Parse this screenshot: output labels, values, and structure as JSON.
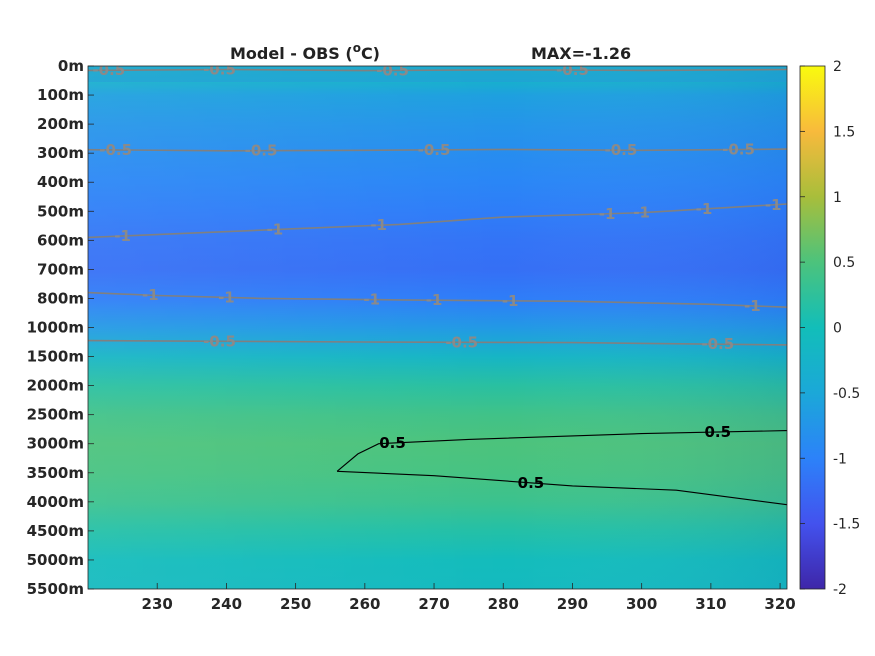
{
  "chart_data": {
    "type": "heatmap",
    "title": "Model - OBS (",
    "title_unit": "o",
    "title_suffix": "C)",
    "max_label": "MAX=-1.26",
    "x_ticks": [
      230,
      240,
      250,
      260,
      270,
      280,
      290,
      300,
      310,
      320
    ],
    "xlim": [
      220,
      321
    ],
    "y_tick_labels": [
      "0m",
      "100m",
      "200m",
      "300m",
      "400m",
      "500m",
      "600m",
      "700m",
      "800m",
      "1000m",
      "1500m",
      "2000m",
      "2500m",
      "3000m",
      "3500m",
      "4000m",
      "4500m",
      "5000m",
      "5500m"
    ],
    "colorbar": {
      "clim": [
        -2,
        2
      ],
      "ticks": [
        "2",
        "1.5",
        "1",
        "0.5",
        "0",
        "-0.5",
        "-1",
        "-1.5",
        "-2"
      ],
      "colormap": "parula"
    },
    "depth_profile": [
      {
        "level": 0,
        "value": -0.15
      },
      {
        "level": 0.5,
        "value": -0.3
      },
      {
        "level": 1,
        "value": -0.6
      },
      {
        "level": 2,
        "value": -0.75
      },
      {
        "level": 3,
        "value": -0.85
      },
      {
        "level": 4,
        "value": -0.95
      },
      {
        "level": 5,
        "value": -1.05
      },
      {
        "level": 6,
        "value": -1.15
      },
      {
        "level": 7,
        "value": -1.2
      },
      {
        "level": 8,
        "value": -1.05
      },
      {
        "level": 9,
        "value": -0.7
      },
      {
        "level": 10,
        "value": -0.2
      },
      {
        "level": 11,
        "value": 0.2
      },
      {
        "level": 12,
        "value": 0.4
      },
      {
        "level": 13,
        "value": 0.5
      },
      {
        "level": 14,
        "value": 0.45
      },
      {
        "level": 15,
        "value": 0.35
      },
      {
        "level": 16,
        "value": 0.15
      },
      {
        "level": 17,
        "value": -0.05
      },
      {
        "level": 18,
        "value": -0.1
      }
    ],
    "contours": [
      {
        "value": -0.5,
        "color": "#808080",
        "labels": [
          "-0.5",
          "-0.5",
          "-0.5",
          "-0.5"
        ],
        "points": [
          [
            220,
            0.15
          ],
          [
            240,
            0.12
          ],
          [
            260,
            0.16
          ],
          [
            280,
            0.13
          ],
          [
            300,
            0.15
          ],
          [
            321,
            0.12
          ]
        ],
        "label_x": [
          223,
          239,
          264,
          290
        ]
      },
      {
        "value": -0.5,
        "color": "#808080",
        "labels": [
          "-0.5",
          "-0.5",
          "-0.5",
          "-0.5",
          "-0.5"
        ],
        "points": [
          [
            220,
            2.88
          ],
          [
            240,
            2.92
          ],
          [
            260,
            2.9
          ],
          [
            280,
            2.87
          ],
          [
            300,
            2.9
          ],
          [
            321,
            2.86
          ]
        ],
        "label_x": [
          224,
          245,
          270,
          297,
          314
        ]
      },
      {
        "value": -1,
        "color": "#808080",
        "labels": [
          "-1",
          "-1",
          "-1",
          "-1",
          "-1",
          "-1",
          "-1"
        ],
        "points": [
          [
            220,
            5.9
          ],
          [
            235,
            5.75
          ],
          [
            250,
            5.6
          ],
          [
            265,
            5.45
          ],
          [
            280,
            5.2
          ],
          [
            300,
            5.05
          ],
          [
            321,
            4.75
          ]
        ],
        "label_x": [
          225,
          247,
          262,
          295,
          300,
          309,
          319
        ]
      },
      {
        "value": -1,
        "color": "#808080",
        "labels": [
          "-1",
          "-1",
          "-1",
          "-1",
          "-1",
          "-1"
        ],
        "points": [
          [
            220,
            7.8
          ],
          [
            230,
            7.9
          ],
          [
            245,
            8.0
          ],
          [
            265,
            8.05
          ],
          [
            290,
            8.1
          ],
          [
            310,
            8.2
          ],
          [
            321,
            8.3
          ]
        ],
        "label_x": [
          229,
          240,
          261,
          270,
          281,
          316
        ]
      },
      {
        "value": -0.5,
        "color": "#808080",
        "labels": [
          "-0.5",
          "-0.5",
          "-0.5"
        ],
        "points": [
          [
            220,
            9.45
          ],
          [
            260,
            9.5
          ],
          [
            290,
            9.52
          ],
          [
            321,
            9.6
          ]
        ],
        "label_x": [
          239,
          274,
          311
        ]
      },
      {
        "value": 0.5,
        "color": "#000000",
        "labels": [
          "0.5",
          "0.5"
        ],
        "points": [
          [
            256,
            13.95
          ],
          [
            259,
            13.35
          ],
          [
            262,
            13.0
          ],
          [
            275,
            12.85
          ],
          [
            300,
            12.65
          ],
          [
            321,
            12.55
          ]
        ],
        "label_x": [
          264,
          311
        ]
      },
      {
        "value": 0.5,
        "color": "#000000",
        "labels": [
          "0.5"
        ],
        "points": [
          [
            256,
            13.95
          ],
          [
            270,
            14.1
          ],
          [
            290,
            14.45
          ],
          [
            305,
            14.6
          ],
          [
            321,
            15.1
          ]
        ],
        "label_x": [
          284
        ]
      }
    ]
  }
}
